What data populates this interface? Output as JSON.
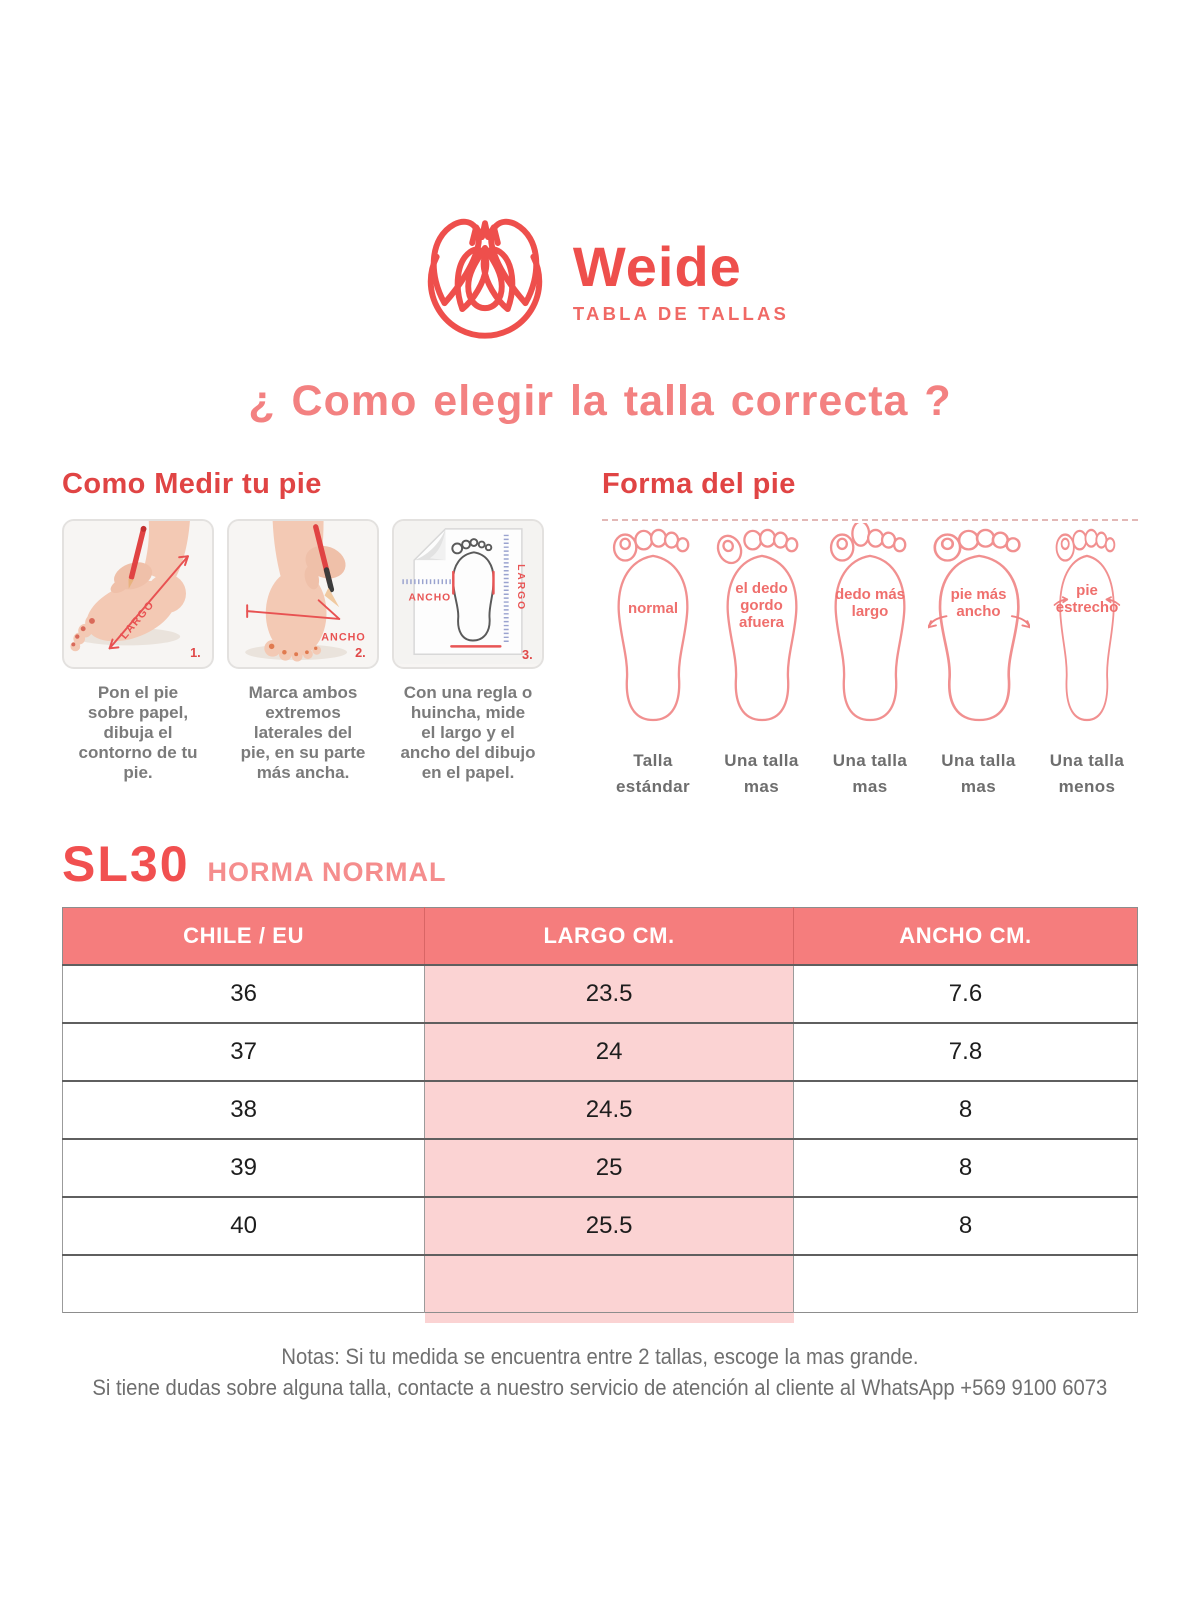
{
  "colors": {
    "brand": "#ee4f4c",
    "brand_light": "#f06965",
    "title": "#f38181",
    "heading": "#e04444",
    "model": "#f15050",
    "fit": "#f58d8d",
    "table_header_bg": "#f57d7d",
    "highlight_column_bg": "#fbd3d3"
  },
  "brand": {
    "name": "Weide",
    "tagline": "TABLA DE TALLAS",
    "logo_icon": "swan-crown-emblem"
  },
  "title": "¿ Como elegir la talla correcta ?",
  "measure_section": {
    "heading": "Como Medir tu pie",
    "steps": [
      {
        "num": "1.",
        "labels": {
          "largo": "LARGO"
        },
        "caption": "Pon el pie\nsobre papel,\ndibuja el\ncontorno de tu\npie."
      },
      {
        "num": "2.",
        "labels": {
          "ancho": "ANCHO"
        },
        "caption": "Marca ambos\nextremos\nlaterales del\npie, en su parte\nmás ancha."
      },
      {
        "num": "3.",
        "labels": {
          "ancho": "ANCHO",
          "largo": "LARGO"
        },
        "caption": "Con una regla o\nhuincha, mide\nel largo y el\nancho del dibujo\nen el papel."
      }
    ]
  },
  "shape_section": {
    "heading": "Forma del pie",
    "feet": [
      {
        "type": "normal",
        "label": "normal",
        "result": "Talla\nestándar"
      },
      {
        "type": "big-toe-out",
        "label": "el dedo\ngordo\nafuera",
        "result": "Una talla\nmas"
      },
      {
        "type": "long-toe",
        "label": "dedo más\nlargo",
        "result": "Una talla\nmas"
      },
      {
        "type": "wide",
        "label": "pie más\nancho",
        "result": "Una talla\nmas"
      },
      {
        "type": "narrow",
        "label": "pie\nestrecho",
        "result": "Una talla\nmenos"
      }
    ]
  },
  "size_chart": {
    "model": "SL30",
    "fit": "HORMA NORMAL",
    "columns": [
      "CHILE / EU",
      "LARGO CM.",
      "ANCHO CM."
    ],
    "rows": [
      [
        "36",
        "23.5",
        "7.6"
      ],
      [
        "37",
        "24",
        "7.8"
      ],
      [
        "38",
        "24.5",
        "8"
      ],
      [
        "39",
        "25",
        "8"
      ],
      [
        "40",
        "25.5",
        "8"
      ],
      [
        "",
        "",
        ""
      ]
    ]
  },
  "notes": {
    "line1": "Notas: Si tu medida se encuentra entre 2 tallas, escoge la mas grande.",
    "line2": "Si tiene dudas sobre alguna talla, contacte a nuestro servicio de atención al cliente al WhatsApp +569 9100 6073"
  }
}
